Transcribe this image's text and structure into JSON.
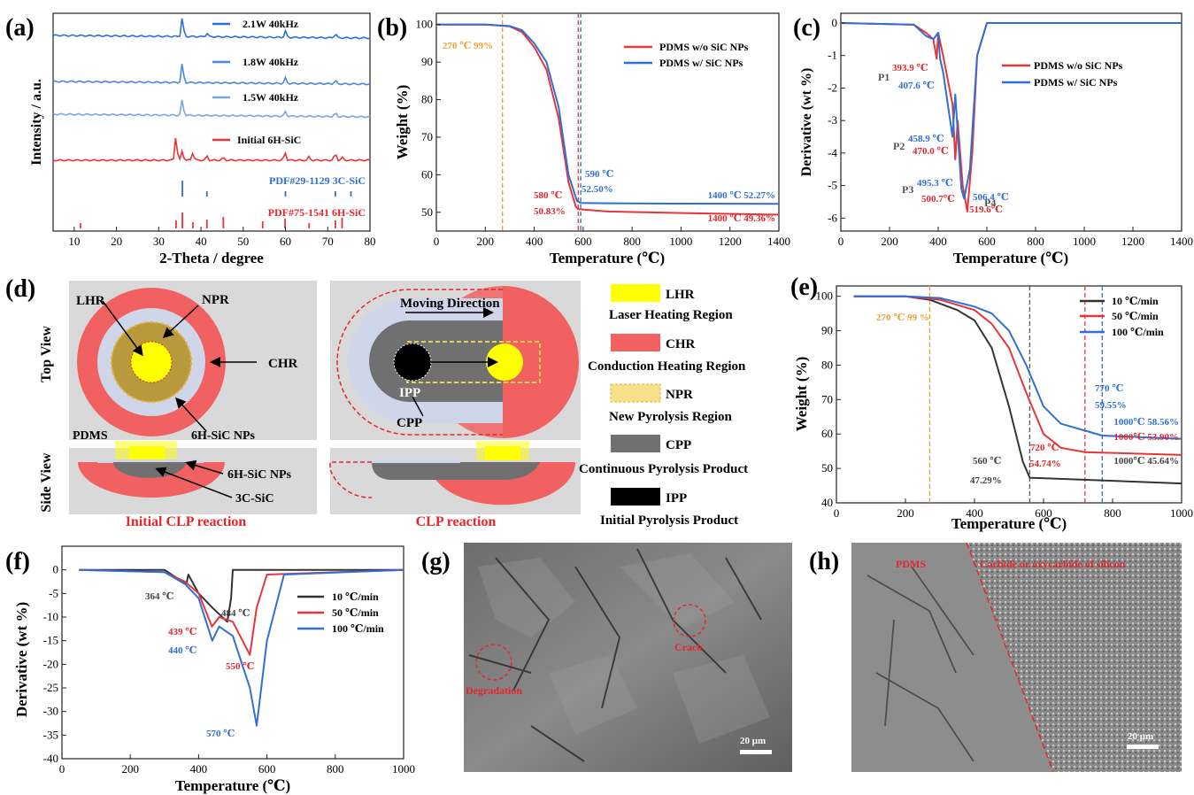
{
  "colors": {
    "red": "#e8353a",
    "blue": "#2f6fd6",
    "lightblue": "#7aa6e6",
    "midblue": "#4b87dd",
    "darkblue": "#1f5fbf",
    "orange": "#f0a030",
    "black": "#333333",
    "pink": "#f26161",
    "grey": "#d9d9d9",
    "lightgrey": "#cfd6ea",
    "yellow": "#ffff00",
    "darkgrey": "#707070",
    "redtext": "#e8262a"
  },
  "panels": {
    "a": {
      "letter": "(a)",
      "xlabel": "2-Theta / degree",
      "ylabel": "Intensity / a.u.",
      "xticks": [
        "10",
        "20",
        "30",
        "40",
        "50",
        "60",
        "70",
        "80"
      ],
      "legend": [
        "2.1W 40kHz",
        "1.8W 40kHz",
        "1.5W 40kHz",
        "Initial 6H-SiC"
      ],
      "pdf1": "PDF#29-1129 3C-SiC",
      "pdf2": "PDF#75-1541 6H-SiC"
    },
    "b": {
      "letter": "(b)",
      "xlabel": "Temperature (℃)",
      "ylabel": "Weight (%)",
      "xticks": [
        "0",
        "200",
        "400",
        "600",
        "800",
        "1000",
        "1200",
        "1400"
      ],
      "yticks": [
        "100",
        "90",
        "80",
        "70",
        "60",
        "50"
      ],
      "legend": [
        "PDMS w/o SiC NPs",
        "PDMS w/  SiC NPs"
      ],
      "ann": {
        "a1": "270 ℃ 99%",
        "a2": "590 ℃",
        "a3": "52.50%",
        "a4": "580 ℃",
        "a5": "50.83%",
        "a6": "1400 ℃ 52.27%",
        "a7": "1400 ℃ 49.36%"
      }
    },
    "c": {
      "letter": "(c)",
      "xlabel": "Temperature (℃)",
      "ylabel": "Derivative (wt %)",
      "xticks": [
        "0",
        "200",
        "400",
        "600",
        "800",
        "1000",
        "1200",
        "1400"
      ],
      "yticks": [
        "0",
        "-1",
        "-2",
        "-3",
        "-4",
        "-5",
        "-6"
      ],
      "legend": [
        "PDMS  w/o SiC NPs",
        "PDMS  w/   SiC NPs"
      ],
      "ann": {
        "p1": "P1",
        "p2": "P2",
        "p3": "P3",
        "p4": "P4",
        "r1": "393.9 ℃",
        "b1": "407.6 ℃",
        "b2": "458.9 ℃",
        "r2": "470.0 ℃",
        "b3": "495.3 ℃",
        "r3": "500.7℃",
        "b4": "506.4 ℃",
        "r4": "519.6℃"
      }
    },
    "d": {
      "letter": "(d)",
      "topview": "Top View",
      "sideview": "Side View",
      "lhr": "LHR",
      "npr": "NPR",
      "chr": "CHR",
      "nps": "6H-SiC NPs",
      "pdms": "PDMS",
      "moving": "Moving Direction",
      "ipp": "IPP",
      "cpp": "CPP",
      "sic_nps_side": "6H-SiC NPs",
      "sic3c": "3C-SiC",
      "initial": "Initial CLP reaction",
      "clp": "CLP reaction",
      "legend": [
        {
          "abbr": "LHR",
          "full": "Laser Heating Region"
        },
        {
          "abbr": "CHR",
          "full": "Conduction Heating Region"
        },
        {
          "abbr": "NPR",
          "full": "New Pyrolysis Region"
        },
        {
          "abbr": "CPP",
          "full": "Continuous Pyrolysis Product"
        },
        {
          "abbr": "IPP",
          "full": "Initial Pyrolysis Product"
        }
      ]
    },
    "e": {
      "letter": "(e)",
      "xlabel": "Temperature (℃)",
      "ylabel": "Weight (%)",
      "xticks": [
        "0",
        "200",
        "400",
        "600",
        "800",
        "1000"
      ],
      "yticks": [
        "100",
        "90",
        "80",
        "70",
        "60",
        "50",
        "40"
      ],
      "legend": [
        "10   ℃/min",
        "50   ℃/min",
        "100 ℃/min"
      ],
      "ann": {
        "a1": "270 ℃ 99 %",
        "a2": "770 ℃",
        "a3": "59.55%",
        "a4": "1000℃ 58.56%",
        "a5": "1000℃ 53.90%",
        "a6": "720 ℃",
        "a7": "54.74%",
        "a8": "560 ℃",
        "a9": "47.29%",
        "a10": "1000℃ 45.64%"
      }
    },
    "f": {
      "letter": "(f)",
      "xlabel": "Temperature (℃)",
      "ylabel": "Derivative (wt %)",
      "xticks": [
        "0",
        "200",
        "400",
        "600",
        "800",
        "1000"
      ],
      "yticks": [
        "0",
        "-5",
        "-10",
        "-15",
        "-20",
        "-25",
        "-30",
        "-35",
        "-40"
      ],
      "legend": [
        "10   ℃/min",
        "50   ℃/min",
        "100 ℃/min"
      ],
      "ann": {
        "a1": "364 ℃",
        "a2": "484 ℃",
        "a3": "439 ℃",
        "a4": "440 ℃",
        "a5": "550 ℃",
        "a6": "570 ℃"
      }
    },
    "g": {
      "letter": "(g)",
      "crack": "Crack",
      "degradation": "Degradation",
      "scale": "20 μm"
    },
    "h": {
      "letter": "(h)",
      "pdms": "PDMS",
      "carbide": "Carbide or oxycarbide of silicon",
      "scale": "20 μm"
    }
  },
  "chart_data": [
    {
      "type": "line",
      "panel": "a",
      "title": "",
      "xlabel": "2-Theta / degree",
      "ylabel": "Intensity / a.u.",
      "xlim": [
        5,
        80
      ],
      "series": [
        {
          "name": "2.1W 40kHz",
          "peaks": [
            35.6,
            41.4,
            60.0,
            71.8
          ]
        },
        {
          "name": "1.8W 40kHz",
          "peaks": [
            35.6,
            60.0,
            71.8
          ]
        },
        {
          "name": "1.5W 40kHz",
          "peaks": [
            35.6,
            60.0,
            71.8
          ]
        },
        {
          "name": "Initial 6H-SiC",
          "peaks": [
            34.1,
            35.6,
            38.1,
            41.4,
            45.3,
            59.9,
            65.6,
            71.8,
            73.4
          ]
        }
      ],
      "reference": [
        {
          "name": "PDF#29-1129 3C-SiC",
          "lines": [
            35.6,
            41.4,
            60.0,
            71.8,
            75.5
          ]
        },
        {
          "name": "PDF#75-1541 6H-SiC",
          "lines": [
            11.5,
            34.1,
            35.6,
            38.1,
            41.4,
            45.3,
            54.6,
            59.9,
            65.6,
            71.8,
            73.4
          ]
        }
      ]
    },
    {
      "type": "line",
      "panel": "b",
      "xlabel": "Temperature (℃)",
      "ylabel": "Weight (%)",
      "xlim": [
        0,
        1400
      ],
      "ylim": [
        45,
        103
      ],
      "series": [
        {
          "name": "PDMS w/o SiC NPs",
          "x": [
            0,
            200,
            300,
            350,
            400,
            450,
            500,
            540,
            570,
            580,
            700,
            1000,
            1400
          ],
          "y": [
            100,
            100,
            99.5,
            98,
            94,
            88,
            75,
            58,
            51.5,
            50.83,
            50.2,
            49.8,
            49.36
          ]
        },
        {
          "name": "PDMS w/  SiC NPs",
          "x": [
            0,
            200,
            300,
            350,
            400,
            450,
            500,
            540,
            575,
            590,
            700,
            1000,
            1400
          ],
          "y": [
            100,
            100,
            99.6,
            98.5,
            95,
            90,
            78,
            60,
            53,
            52.5,
            52.4,
            52.3,
            52.27
          ]
        }
      ]
    },
    {
      "type": "line",
      "panel": "c",
      "xlabel": "Temperature (℃)",
      "ylabel": "Derivative (wt %)",
      "xlim": [
        0,
        1400
      ],
      "ylim": [
        -6.4,
        0.3
      ],
      "series": [
        {
          "name": "PDMS  w/o SiC NPs",
          "x": [
            0,
            300,
            350,
            380,
            393.9,
            400,
            420,
            458.9,
            470,
            480,
            500.7,
            519.6,
            540,
            560,
            600,
            1400
          ],
          "y": [
            0,
            -0.05,
            -0.3,
            -0.5,
            -1.1,
            -0.3,
            -1,
            -2.5,
            -4.2,
            -3.0,
            -5.0,
            -5.8,
            -4,
            -1,
            0,
            0
          ]
        },
        {
          "name": "PDMS  w/   SiC NPs",
          "x": [
            0,
            300,
            350,
            380,
            400,
            407.6,
            420,
            458.9,
            470,
            495.3,
            506.4,
            530,
            560,
            600,
            1400
          ],
          "y": [
            0,
            -0.05,
            -0.4,
            -0.5,
            -0.3,
            -1.1,
            -1.5,
            -3.5,
            -2.2,
            -5.1,
            -5.4,
            -4.5,
            -1,
            0,
            0
          ]
        }
      ]
    },
    {
      "type": "line",
      "panel": "e",
      "xlabel": "Temperature (℃)",
      "ylabel": "Weight (%)",
      "xlim": [
        0,
        1000
      ],
      "ylim": [
        40,
        103
      ],
      "series": [
        {
          "name": "10   ℃/min",
          "x": [
            50,
            200,
            270,
            350,
            400,
            450,
            500,
            540,
            560,
            700,
            1000
          ],
          "y": [
            100,
            100,
            99,
            96,
            93,
            85,
            68,
            52,
            47.29,
            46.8,
            45.64
          ]
        },
        {
          "name": "50   ℃/min",
          "x": [
            50,
            200,
            300,
            400,
            450,
            500,
            550,
            600,
            650,
            720,
            1000
          ],
          "y": [
            100,
            100,
            99,
            96,
            92,
            85,
            72,
            60,
            56,
            54.74,
            53.9
          ]
        },
        {
          "name": "100 ℃/min",
          "x": [
            50,
            200,
            300,
            400,
            450,
            500,
            550,
            600,
            650,
            770,
            1000
          ],
          "y": [
            100,
            100,
            99.5,
            97,
            95,
            90,
            80,
            68,
            63,
            59.55,
            58.56
          ]
        }
      ]
    },
    {
      "type": "line",
      "panel": "f",
      "xlabel": "Temperature (℃)",
      "ylabel": "Derivative (wt %)",
      "xlim": [
        0,
        1000
      ],
      "ylim": [
        -40,
        5
      ],
      "series": [
        {
          "name": "10   ℃/min",
          "x": [
            50,
            300,
            364,
            370,
            400,
            440,
            484,
            495,
            500,
            1000
          ],
          "y": [
            0,
            0,
            -3,
            -1,
            -5,
            -8,
            -11,
            -6,
            0,
            0
          ]
        },
        {
          "name": "50   ℃/min",
          "x": [
            50,
            300,
            360,
            400,
            439,
            460,
            500,
            550,
            570,
            600,
            1000
          ],
          "y": [
            0,
            -0.5,
            -2.5,
            -5,
            -12,
            -10,
            -11,
            -18,
            -8,
            -1,
            0
          ]
        },
        {
          "name": "100 ℃/min",
          "x": [
            50,
            300,
            360,
            400,
            440,
            460,
            500,
            550,
            570,
            600,
            650,
            1000
          ],
          "y": [
            0,
            -0.5,
            -3,
            -6,
            -15,
            -12,
            -14,
            -25,
            -33,
            -15,
            -1,
            0
          ]
        }
      ]
    }
  ]
}
